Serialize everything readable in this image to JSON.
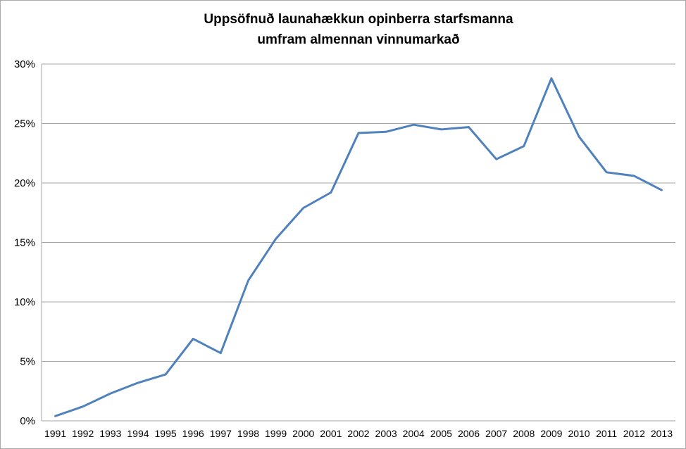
{
  "chart_data": {
    "type": "line",
    "title": "Uppsöfnuð launahækkun opinberra starfsmanna umfram almennan vinnumarkað",
    "title_lines": [
      "Uppsöfnuð launahækkun opinberra starfsmanna",
      "umfram almennan vinnumarkað"
    ],
    "categories": [
      "1991",
      "1992",
      "1993",
      "1994",
      "1995",
      "1996",
      "1997",
      "1998",
      "1999",
      "2000",
      "2001",
      "2002",
      "2003",
      "2004",
      "2005",
      "2006",
      "2007",
      "2008",
      "2009",
      "2010",
      "2011",
      "2012",
      "2013"
    ],
    "values": [
      0.4,
      1.2,
      2.3,
      3.2,
      3.9,
      6.9,
      5.7,
      11.8,
      15.3,
      17.9,
      19.2,
      24.2,
      24.3,
      24.9,
      24.5,
      24.7,
      22.0,
      23.1,
      28.8,
      23.9,
      20.9,
      20.6,
      19.4
    ],
    "xlabel": "",
    "ylabel": "",
    "ylim": [
      0,
      30
    ],
    "ytick_step": 5,
    "ytick_labels": [
      "0%",
      "5%",
      "10%",
      "15%",
      "20%",
      "25%",
      "30%"
    ],
    "grid": true,
    "legend": false,
    "line_color": "#4F81BD",
    "gridline_color": "#A6A6A6",
    "text_color": "#000000",
    "background_color": "#FFFFFF",
    "outer_border_color": "#ABABAB"
  }
}
